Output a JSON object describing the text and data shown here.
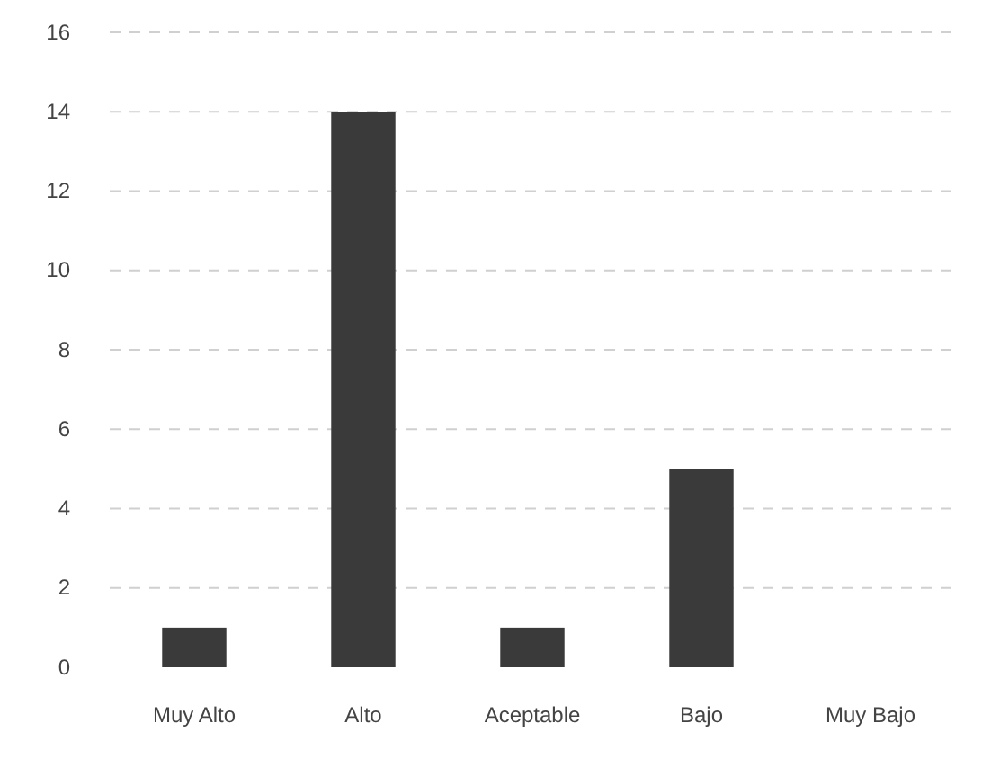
{
  "chart_data": {
    "type": "bar",
    "categories": [
      "Muy Alto",
      "Alto",
      "Aceptable",
      "Bajo",
      "Muy Bajo"
    ],
    "values": [
      1,
      14,
      1,
      5,
      0
    ],
    "color": "#3a3a3a",
    "ylim": [
      0,
      16
    ],
    "yticks": [
      0,
      2,
      4,
      6,
      8,
      10,
      12,
      14,
      16
    ],
    "grid": "y"
  }
}
